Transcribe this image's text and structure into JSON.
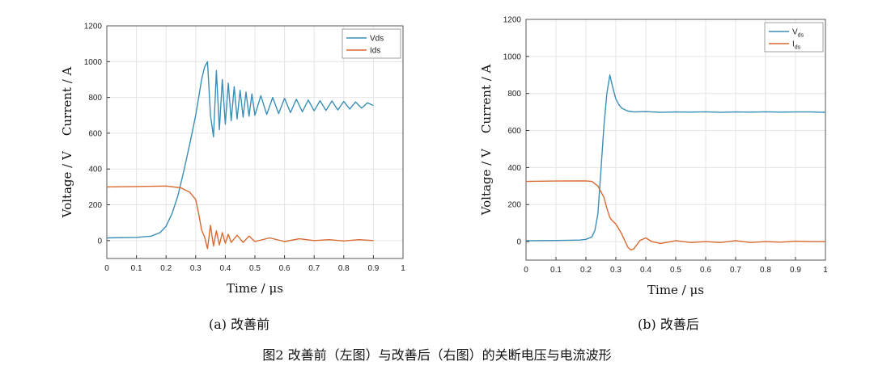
{
  "chart_data": [
    {
      "type": "line",
      "x_ticks": [
        "0",
        "0.1",
        "0.2",
        "0.3",
        "0.4",
        "0.5",
        "0.6",
        "0.7",
        "0.8",
        "0.9",
        "1"
      ],
      "y_ticks": [
        "0",
        "200",
        "400",
        "600",
        "800",
        "1000",
        "1200"
      ],
      "xlabel": "Time / μs",
      "ylabel": "Voltage / V    Current / A",
      "xlim": [
        0,
        1
      ],
      "ylim": [
        -100,
        1200
      ],
      "grid": true,
      "legend_position": "top-right",
      "caption": "(a) 改善前",
      "series": [
        {
          "name": "Vds",
          "color": "#3a8fb7",
          "x": [
            0,
            0.1,
            0.15,
            0.18,
            0.2,
            0.22,
            0.24,
            0.26,
            0.28,
            0.3,
            0.31,
            0.32,
            0.33,
            0.34,
            0.35,
            0.36,
            0.37,
            0.38,
            0.39,
            0.4,
            0.41,
            0.42,
            0.43,
            0.44,
            0.45,
            0.46,
            0.47,
            0.48,
            0.49,
            0.5,
            0.52,
            0.54,
            0.56,
            0.58,
            0.6,
            0.62,
            0.64,
            0.66,
            0.68,
            0.7,
            0.72,
            0.74,
            0.76,
            0.78,
            0.8,
            0.82,
            0.84,
            0.86,
            0.88,
            0.9
          ],
          "y": [
            15,
            18,
            25,
            45,
            80,
            150,
            250,
            390,
            540,
            700,
            800,
            900,
            970,
            1000,
            700,
            580,
            950,
            620,
            900,
            650,
            880,
            670,
            860,
            680,
            840,
            690,
            830,
            695,
            820,
            700,
            810,
            705,
            800,
            710,
            795,
            715,
            790,
            720,
            785,
            725,
            782,
            728,
            780,
            730,
            778,
            735,
            775,
            740,
            770,
            755
          ]
        },
        {
          "name": "Ids",
          "color": "#d8692f",
          "x": [
            0,
            0.1,
            0.2,
            0.25,
            0.28,
            0.3,
            0.31,
            0.32,
            0.33,
            0.34,
            0.35,
            0.36,
            0.37,
            0.38,
            0.39,
            0.4,
            0.41,
            0.42,
            0.44,
            0.46,
            0.48,
            0.5,
            0.55,
            0.6,
            0.65,
            0.7,
            0.75,
            0.8,
            0.85,
            0.9
          ],
          "y": [
            300,
            302,
            305,
            295,
            270,
            230,
            150,
            60,
            20,
            -45,
            85,
            -30,
            55,
            -25,
            45,
            -15,
            35,
            -10,
            30,
            -10,
            25,
            -5,
            15,
            -5,
            10,
            0,
            5,
            -2,
            5,
            0
          ]
        }
      ]
    },
    {
      "type": "line",
      "x_ticks": [
        "0",
        "0.1",
        "0.2",
        "0.3",
        "0.4",
        "0.5",
        "0.6",
        "0.7",
        "0.8",
        "0.9",
        "1"
      ],
      "y_ticks": [
        "0",
        "200",
        "400",
        "600",
        "800",
        "1000",
        "1200"
      ],
      "xlabel": "Time / μs",
      "ylabel": "Voltage / V    Current / A",
      "xlim": [
        0,
        1
      ],
      "ylim": [
        -100,
        1200
      ],
      "grid": true,
      "legend_position": "top-right",
      "caption": "(b) 改善后",
      "series": [
        {
          "name": "Vds",
          "name_main": "V",
          "name_sub": "ds",
          "color": "#3a8fb7",
          "x": [
            0,
            0.1,
            0.18,
            0.2,
            0.22,
            0.23,
            0.24,
            0.25,
            0.26,
            0.27,
            0.28,
            0.29,
            0.3,
            0.31,
            0.32,
            0.34,
            0.36,
            0.4,
            0.45,
            0.5,
            0.55,
            0.6,
            0.65,
            0.7,
            0.75,
            0.8,
            0.85,
            0.9,
            0.95,
            1
          ],
          "y": [
            5,
            6,
            8,
            12,
            25,
            60,
            150,
            380,
            620,
            800,
            900,
            830,
            770,
            740,
            720,
            705,
            700,
            702,
            698,
            700,
            699,
            701,
            698,
            700,
            699,
            701,
            699,
            700,
            700,
            698
          ]
        },
        {
          "name": "Ids",
          "name_main": "I",
          "name_sub": "ds",
          "color": "#d8692f",
          "x": [
            0,
            0.1,
            0.2,
            0.22,
            0.24,
            0.26,
            0.27,
            0.28,
            0.29,
            0.3,
            0.32,
            0.34,
            0.35,
            0.36,
            0.38,
            0.4,
            0.42,
            0.45,
            0.5,
            0.55,
            0.6,
            0.65,
            0.7,
            0.75,
            0.8,
            0.85,
            0.9,
            0.95,
            1
          ],
          "y": [
            325,
            327,
            328,
            325,
            300,
            240,
            180,
            130,
            110,
            95,
            40,
            -30,
            -45,
            -40,
            5,
            20,
            0,
            -10,
            5,
            -5,
            0,
            -5,
            5,
            -5,
            0,
            -3,
            2,
            0,
            0
          ]
        }
      ]
    }
  ],
  "figure_caption": "图2   改善前（左图）与改善后（右图）的关断电压与电流波形"
}
